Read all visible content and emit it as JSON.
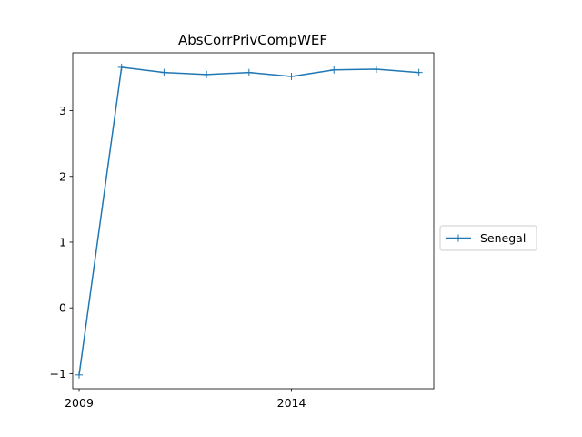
{
  "chart_data": {
    "type": "line",
    "title": "AbsCorrPrivCompWEF",
    "xlabel": "",
    "ylabel": "",
    "x": [
      2009,
      2010,
      2011,
      2012,
      2013,
      2014,
      2015,
      2016,
      2017
    ],
    "series": [
      {
        "name": "Senegal",
        "color": "#1f77b4",
        "marker": "plus",
        "values": [
          -1.02,
          3.66,
          3.58,
          3.55,
          3.58,
          3.52,
          3.62,
          3.63,
          3.58
        ]
      }
    ],
    "xlim": [
      2008.85,
      2017.35
    ],
    "ylim": [
      -1.23,
      3.88
    ],
    "x_ticks": [
      {
        "value": 2009,
        "label": "2009"
      },
      {
        "value": 2014,
        "label": "2014"
      }
    ],
    "y_ticks": [
      {
        "value": -1,
        "label": "−1"
      },
      {
        "value": 0,
        "label": "0"
      },
      {
        "value": 1,
        "label": "1"
      },
      {
        "value": 2,
        "label": "2"
      },
      {
        "value": 3,
        "label": "3"
      }
    ],
    "grid": false,
    "legend_position": "right, outside plot"
  }
}
